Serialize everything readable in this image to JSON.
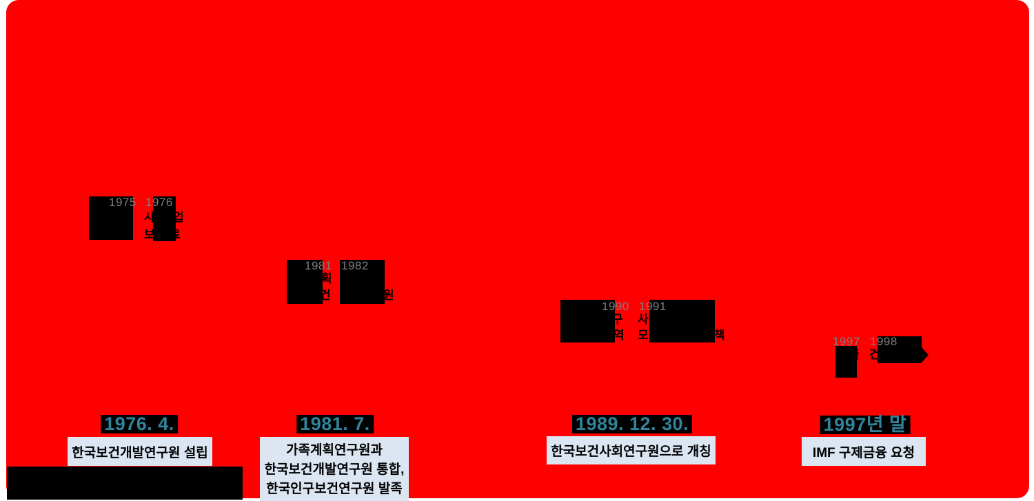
{
  "slide": {
    "background_color": "#FF0000",
    "date_text_color": "#31849B",
    "panel_color": "#DCE6F2",
    "year_text_color": "#7F7F7F"
  },
  "milestones": [
    {
      "date": "1976. 4.",
      "description": "한국보건개발연구원 설립",
      "year_left": "1975",
      "year_right": "1976",
      "fragments": {
        "f1": "사",
        "f2": "업",
        "f3": "보",
        "f4": "료"
      }
    },
    {
      "date": "1981. 7.",
      "description_line1": "가족계획연구원과",
      "description_line2": "한국보건개발연구원 통합,",
      "description_line3": "한국인구보건연구원 발족",
      "year_left": "1981",
      "year_right": "1982",
      "fragments": {
        "f1": "획",
        "f2": "건",
        "f3": "원"
      }
    },
    {
      "date": "1989. 12. 30.",
      "description": "한국보건사회연구원으로 개칭",
      "year_left": "1990",
      "year_right": "1991",
      "fragments": {
        "f1": "구",
        "f2": "역",
        "f3": "사",
        "f4": "모",
        "f5": "책"
      }
    },
    {
      "date": "1997년 말",
      "description": "IMF 구제금융 요청",
      "year_left": "1997",
      "year_right": "1998",
      "fragments": {
        "f1": "를",
        "f2": "건"
      }
    }
  ]
}
